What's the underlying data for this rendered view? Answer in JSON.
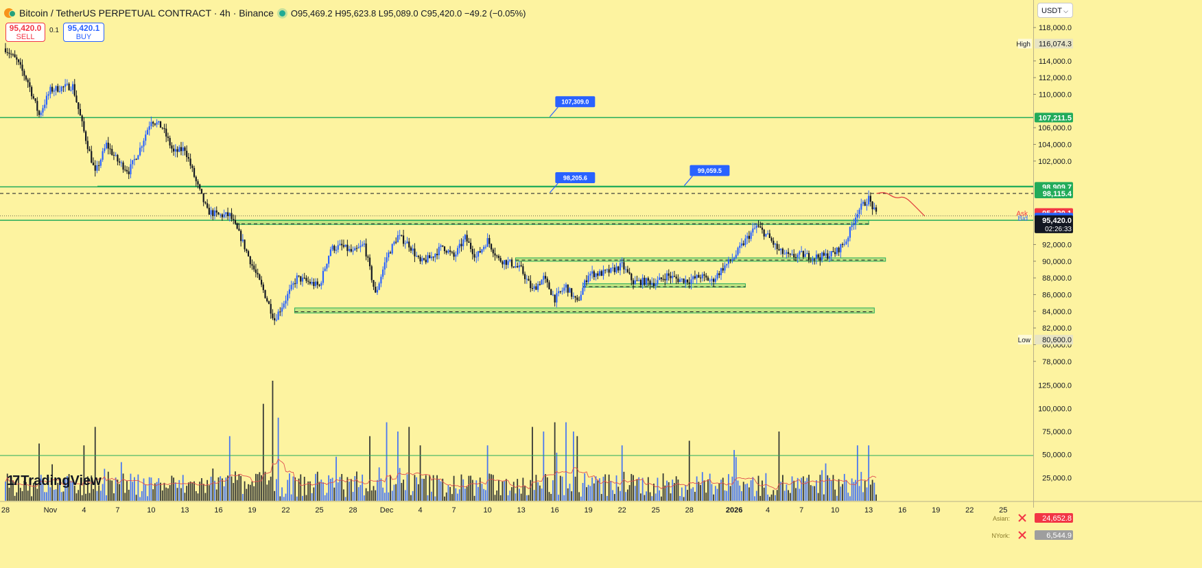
{
  "header": {
    "symbol": "Bitcoin / TetherUS PERPETUAL CONTRACT · 4h · Binance",
    "ohlc": "O95,469.2 H95,623.8 L95,089.0 C95,420.0 −49.2 (−0.05%)"
  },
  "trade": {
    "sell_price": "95,420.0",
    "sell_label": "SELL",
    "buy_price": "95,420.1",
    "buy_label": "BUY",
    "spread": "0.1"
  },
  "currency": "USDT",
  "logo_text": "TradingView",
  "colors": {
    "background": "#fdf3a0",
    "candle_up": "#2962ff",
    "candle_down": "#131722",
    "level": "#22ab5a",
    "zone": "#b9e07c",
    "volume_ma": "#e05050",
    "forecast": "#e04040"
  },
  "chart_data": {
    "type": "candlestick",
    "timeframe": "4h",
    "ylim": [
      76500,
      119000
    ],
    "y_ticks": [
      78000,
      80000,
      82000,
      84000,
      86000,
      88000,
      90000,
      92000,
      102000,
      104000,
      106000,
      110000,
      112000,
      114000,
      118000
    ],
    "y_tick_labels": [
      "78,000.0",
      "80,000.0",
      "82,000.0",
      "84,000.0",
      "86,000.0",
      "88,000.0",
      "90,000.0",
      "92,000.0",
      "102,000.0",
      "104,000.0",
      "106,000.0",
      "110,000.0",
      "112,000.0",
      "114,000.0",
      "118,000.0"
    ],
    "x_ticks": [
      {
        "label": "28",
        "day": 0
      },
      {
        "label": "Nov",
        "day": 4
      },
      {
        "label": "4",
        "day": 7
      },
      {
        "label": "7",
        "day": 10
      },
      {
        "label": "10",
        "day": 13
      },
      {
        "label": "13",
        "day": 16
      },
      {
        "label": "16",
        "day": 19
      },
      {
        "label": "19",
        "day": 22
      },
      {
        "label": "22",
        "day": 25
      },
      {
        "label": "25",
        "day": 28
      },
      {
        "label": "28",
        "day": 31
      },
      {
        "label": "Dec",
        "day": 34
      },
      {
        "label": "4",
        "day": 37
      },
      {
        "label": "7",
        "day": 40
      },
      {
        "label": "10",
        "day": 43
      },
      {
        "label": "13",
        "day": 46
      },
      {
        "label": "16",
        "day": 49
      },
      {
        "label": "19",
        "day": 52
      },
      {
        "label": "22",
        "day": 55
      },
      {
        "label": "25",
        "day": 58
      },
      {
        "label": "28",
        "day": 61
      },
      {
        "label": "2026",
        "day": 65
      },
      {
        "label": "4",
        "day": 68
      },
      {
        "label": "7",
        "day": 71
      },
      {
        "label": "10",
        "day": 74
      },
      {
        "label": "13",
        "day": 77
      },
      {
        "label": "16",
        "day": 80
      },
      {
        "label": "19",
        "day": 83
      },
      {
        "label": "22",
        "day": 86
      },
      {
        "label": "25",
        "day": 89
      }
    ],
    "price_path": [
      [
        0,
        115500
      ],
      [
        1,
        114000
      ],
      [
        2,
        111500
      ],
      [
        3,
        107500
      ],
      [
        4,
        110500
      ],
      [
        5,
        110800
      ],
      [
        6,
        111000
      ],
      [
        7,
        105500
      ],
      [
        8,
        100500
      ],
      [
        9,
        104000
      ],
      [
        10,
        102000
      ],
      [
        11,
        100800
      ],
      [
        12,
        103500
      ],
      [
        13,
        107000
      ],
      [
        14,
        106000
      ],
      [
        15,
        103000
      ],
      [
        16,
        103500
      ],
      [
        17,
        99500
      ],
      [
        18,
        96000
      ],
      [
        19,
        95500
      ],
      [
        20,
        95500
      ],
      [
        21,
        92800
      ],
      [
        22,
        89500
      ],
      [
        23,
        86500
      ],
      [
        24,
        83000
      ],
      [
        25,
        85500
      ],
      [
        26,
        88000
      ],
      [
        27,
        87500
      ],
      [
        28,
        87000
      ],
      [
        29,
        91500
      ],
      [
        30,
        91800
      ],
      [
        31,
        91000
      ],
      [
        32,
        92000
      ],
      [
        33,
        86000
      ],
      [
        34,
        90500
      ],
      [
        35,
        93000
      ],
      [
        36,
        92000
      ],
      [
        37,
        89800
      ],
      [
        38,
        90500
      ],
      [
        39,
        91800
      ],
      [
        40,
        90500
      ],
      [
        41,
        92800
      ],
      [
        42,
        90500
      ],
      [
        43,
        92500
      ],
      [
        44,
        90200
      ],
      [
        45,
        89800
      ],
      [
        46,
        89000
      ],
      [
        47,
        86500
      ],
      [
        48,
        88000
      ],
      [
        49,
        85500
      ],
      [
        50,
        87000
      ],
      [
        51,
        85000
      ],
      [
        52,
        88500
      ],
      [
        53,
        88500
      ],
      [
        54,
        88800
      ],
      [
        55,
        89500
      ],
      [
        56,
        87500
      ],
      [
        57,
        87600
      ],
      [
        58,
        87400
      ],
      [
        59,
        88300
      ],
      [
        60,
        87800
      ],
      [
        61,
        87700
      ],
      [
        62,
        88200
      ],
      [
        63,
        87600
      ],
      [
        64,
        89200
      ],
      [
        65,
        90500
      ],
      [
        66,
        92500
      ],
      [
        67,
        94200
      ],
      [
        68,
        93000
      ],
      [
        69,
        91200
      ],
      [
        70,
        90500
      ],
      [
        71,
        90800
      ],
      [
        72,
        90500
      ],
      [
        73,
        90600
      ],
      [
        74,
        91000
      ],
      [
        75,
        92500
      ],
      [
        76,
        96000
      ],
      [
        77,
        97500
      ],
      [
        77.4,
        96300
      ],
      [
        77.7,
        95420
      ]
    ],
    "high": {
      "label": "High",
      "value": 116074.3,
      "text": "116,074.3"
    },
    "low": {
      "label": "Low",
      "value": 80600,
      "text": "80,600.0"
    },
    "levels": [
      {
        "value": 107211.5,
        "text": "107,211.5",
        "style": "solid"
      },
      {
        "value": 98909.7,
        "text": "98,909.7",
        "style": "solid"
      },
      {
        "value": 98115.4,
        "text": "98,115.4",
        "style": "dashed"
      },
      {
        "value": 94904.3,
        "text": "94,904.3",
        "style": "solid"
      }
    ],
    "callouts": [
      {
        "text": "107,309.0",
        "value": 107309,
        "day": 51
      },
      {
        "text": "98,205.6",
        "value": 98205.6,
        "day": 51
      },
      {
        "text": "99,059.5",
        "value": 99059.5,
        "day": 63
      }
    ],
    "zones": [
      {
        "from_day": 20.5,
        "to_day": 77,
        "low": 94400,
        "high": 94900
      },
      {
        "from_day": 45.5,
        "to_day": 78.5,
        "low": 90200,
        "high": 90400
      },
      {
        "from_day": 51.5,
        "to_day": 66,
        "low": 86900,
        "high": 87300
      },
      {
        "from_day": 25.8,
        "to_day": 77.5,
        "low": 83800,
        "high": 84400
      }
    ],
    "ask": {
      "label": "Ask",
      "value": 95420.1,
      "text": "95,420.1"
    },
    "bid": {
      "label": "Bid",
      "value": 95420,
      "text": "95,420.0"
    },
    "last": {
      "value": 95420,
      "text": "95,420.0",
      "countdown": "02:26:33"
    },
    "forecast_path": [
      [
        77.7,
        98115
      ],
      [
        78.5,
        98300
      ],
      [
        79.4,
        97500
      ],
      [
        80.2,
        97800
      ],
      [
        81.2,
        96500
      ],
      [
        82,
        95400
      ]
    ],
    "volume": {
      "ylim": [
        0,
        130000
      ],
      "y_ticks": [
        25000,
        50000,
        75000,
        100000,
        125000
      ],
      "y_tick_labels": [
        "25,000.0",
        "50,000.0",
        "75,000.0",
        "100,000.0",
        "125,000.0"
      ],
      "levels": [
        49000
      ],
      "sessions": [
        {
          "name": "Asian:",
          "value": 24652.8,
          "text": "24,652.8"
        },
        {
          "name": "NYork:",
          "value": 6544.9,
          "text": "6,544.9"
        }
      ],
      "spikes": [
        [
          3,
          62000
        ],
        [
          7,
          60000
        ],
        [
          8,
          80000
        ],
        [
          20,
          70000
        ],
        [
          23,
          105000
        ],
        [
          23.8,
          130000
        ],
        [
          24.3,
          90000
        ],
        [
          32.5,
          70000
        ],
        [
          34,
          85000
        ],
        [
          35,
          75000
        ],
        [
          36,
          80000
        ],
        [
          37,
          60000
        ],
        [
          43,
          60000
        ],
        [
          47,
          80000
        ],
        [
          48,
          75000
        ],
        [
          49,
          85000
        ],
        [
          50,
          85000
        ],
        [
          50.6,
          75000
        ],
        [
          51,
          70000
        ],
        [
          55,
          60000
        ],
        [
          61,
          65000
        ],
        [
          65,
          55000
        ],
        [
          69,
          75000
        ],
        [
          76,
          60000
        ],
        [
          77,
          60000
        ]
      ]
    }
  }
}
